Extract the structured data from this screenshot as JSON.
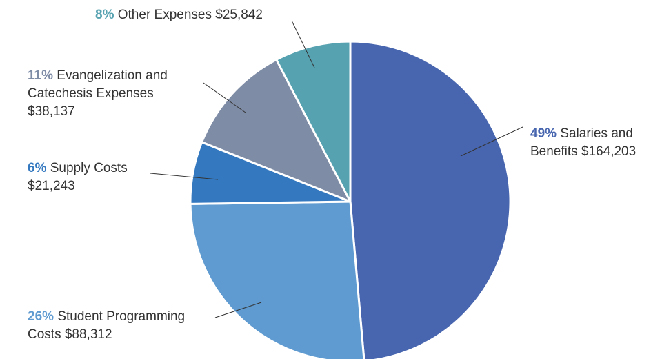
{
  "chart_data": {
    "type": "pie",
    "title": "",
    "start": "12 o'clock, clockwise",
    "slices": [
      {
        "pct_label": "49%",
        "label": "Salaries and Benefits",
        "amount": "$164,203",
        "value": 164203,
        "color": "#4866AF"
      },
      {
        "pct_label": "26%",
        "label": "Student Programming Costs",
        "amount": "$88,312",
        "value": 88312,
        "color": "#5F9BD0"
      },
      {
        "pct_label": "6%",
        "label": "Supply Costs",
        "amount": "$21,243",
        "value": 21243,
        "color": "#3479C0"
      },
      {
        "pct_label": "11%",
        "label": "Evangelization and Catechesis Expenses",
        "amount": "$38,137",
        "value": 38137,
        "color": "#7F8CA6"
      },
      {
        "pct_label": "8%",
        "label": "Other Expenses",
        "amount": "$25,842",
        "value": 25842,
        "color": "#57A2B1"
      }
    ]
  }
}
